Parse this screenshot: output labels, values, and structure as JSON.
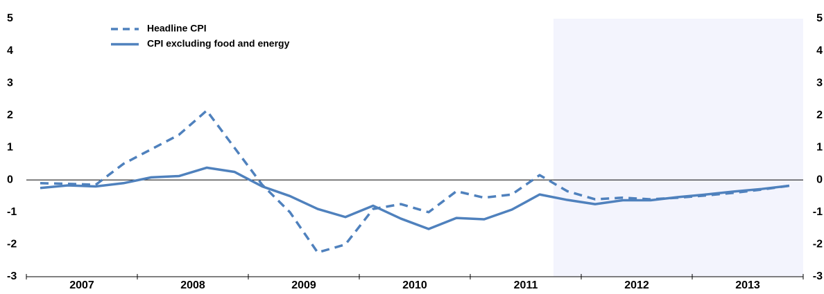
{
  "chart_data": {
    "type": "line",
    "x": [
      2007.125,
      2007.375,
      2007.625,
      2007.875,
      2008.125,
      2008.375,
      2008.625,
      2008.875,
      2009.125,
      2009.375,
      2009.625,
      2009.875,
      2010.125,
      2010.375,
      2010.625,
      2010.875,
      2011.125,
      2011.375,
      2011.625,
      2011.875,
      2012.125,
      2012.375,
      2012.625,
      2012.875,
      2013.125,
      2013.375,
      2013.625,
      2013.875
    ],
    "series": [
      {
        "name": "Headline CPI",
        "color": "#4f81bd",
        "dashed": true,
        "values": [
          -0.1,
          -0.12,
          -0.15,
          0.5,
          0.95,
          1.4,
          2.15,
          1.0,
          -0.15,
          -1.0,
          -2.25,
          -2.0,
          -0.9,
          -0.75,
          -1.0,
          -0.35,
          -0.55,
          -0.45,
          0.15,
          -0.35,
          -0.6,
          -0.55,
          -0.6,
          -0.55,
          -0.48,
          -0.4,
          -0.3,
          -0.18
        ]
      },
      {
        "name": "CPI excluding food and energy",
        "color": "#4f81bd",
        "dashed": false,
        "values": [
          -0.25,
          -0.17,
          -0.2,
          -0.1,
          0.08,
          0.12,
          0.38,
          0.25,
          -0.2,
          -0.5,
          -0.9,
          -1.15,
          -0.8,
          -1.2,
          -1.52,
          -1.18,
          -1.22,
          -0.92,
          -0.45,
          -0.62,
          -0.75,
          -0.63,
          -0.63,
          -0.53,
          -0.45,
          -0.36,
          -0.28,
          -0.18
        ]
      }
    ],
    "xlim": [
      2007,
      2014
    ],
    "xticks": [
      {
        "value": 2007.5,
        "label": "2007"
      },
      {
        "value": 2008.5,
        "label": "2008"
      },
      {
        "value": 2009.5,
        "label": "2009"
      },
      {
        "value": 2010.5,
        "label": "2010"
      },
      {
        "value": 2011.5,
        "label": "2011"
      },
      {
        "value": 2012.5,
        "label": "2012"
      },
      {
        "value": 2013.5,
        "label": "2013"
      }
    ],
    "ylim": [
      -3,
      5
    ],
    "yticks": [
      -3,
      -2,
      -1,
      0,
      1,
      2,
      3,
      4,
      5
    ],
    "y2lim": [
      -3,
      5
    ],
    "y2ticks": [
      -3,
      -2,
      -1,
      0,
      1,
      2,
      3,
      4,
      5
    ],
    "shaded_from": 2011.75,
    "shade_color": "#f3f4fd",
    "legend": "upper left"
  }
}
